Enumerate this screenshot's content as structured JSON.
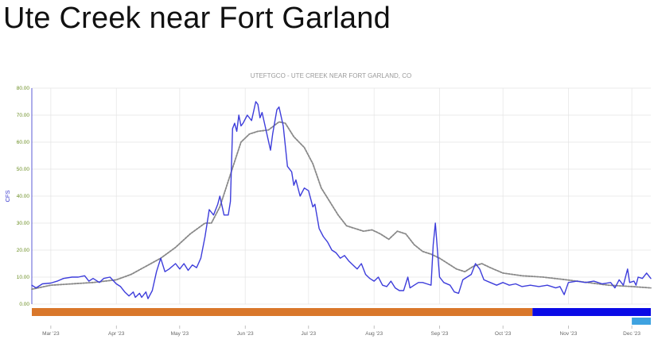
{
  "slide": {
    "title": "Ute Creek near Fort Garland"
  },
  "colors": {
    "observed": "#3d3ddb",
    "median": "#888888",
    "grid": "#e4e4e4",
    "axis": "#3333cc",
    "band_orange": "#d9772b",
    "band_blue": "#0a0ae6",
    "band_lightblue": "#3ea2e0"
  },
  "chart_data": {
    "type": "line",
    "title": "UTEFTGCO - UTE CREEK NEAR FORT GARLAND, CO",
    "ylabel": "CFS",
    "xlabel": "",
    "ylim": [
      0,
      80
    ],
    "yticks": [
      "0.00",
      "10.00",
      "20.00",
      "30.00",
      "40.00",
      "50.00",
      "60.00",
      "70.00",
      "80.00"
    ],
    "xlim": [
      "2023-02-20",
      "2023-12-10"
    ],
    "xticks": [
      {
        "date": "2023-03-01",
        "label": "Mar '23"
      },
      {
        "date": "2023-04-01",
        "label": "Apr '23"
      },
      {
        "date": "2023-05-01",
        "label": "May '23"
      },
      {
        "date": "2023-06-01",
        "label": "Jun '23"
      },
      {
        "date": "2023-07-01",
        "label": "Jul '23"
      },
      {
        "date": "2023-08-01",
        "label": "Aug '23"
      },
      {
        "date": "2023-09-01",
        "label": "Sep '23"
      },
      {
        "date": "2023-10-01",
        "label": "Oct '23"
      },
      {
        "date": "2023-11-01",
        "label": "Nov '23"
      },
      {
        "date": "2023-12-01",
        "label": "Dec '23"
      }
    ],
    "grid": true,
    "series": [
      {
        "key": "observed",
        "style": "solid",
        "points": [
          [
            "2023-02-20",
            7.0
          ],
          [
            "2023-02-22",
            6.0
          ],
          [
            "2023-02-25",
            7.5
          ],
          [
            "2023-03-01",
            7.8
          ],
          [
            "2023-03-04",
            8.5
          ],
          [
            "2023-03-07",
            9.5
          ],
          [
            "2023-03-11",
            10.0
          ],
          [
            "2023-03-14",
            10.0
          ],
          [
            "2023-03-17",
            10.5
          ],
          [
            "2023-03-19",
            8.5
          ],
          [
            "2023-03-21",
            9.5
          ],
          [
            "2023-03-24",
            8.0
          ],
          [
            "2023-03-26",
            9.5
          ],
          [
            "2023-03-29",
            10.0
          ],
          [
            "2023-04-01",
            7.5
          ],
          [
            "2023-04-03",
            6.5
          ],
          [
            "2023-04-05",
            4.5
          ],
          [
            "2023-04-07",
            3.0
          ],
          [
            "2023-04-09",
            4.5
          ],
          [
            "2023-04-10",
            2.5
          ],
          [
            "2023-04-12",
            4.0
          ],
          [
            "2023-04-13",
            2.5
          ],
          [
            "2023-04-15",
            4.5
          ],
          [
            "2023-04-16",
            2.0
          ],
          [
            "2023-04-18",
            5.0
          ],
          [
            "2023-04-20",
            12.0
          ],
          [
            "2023-04-22",
            17.0
          ],
          [
            "2023-04-24",
            12.0
          ],
          [
            "2023-04-26",
            13.0
          ],
          [
            "2023-04-29",
            15.0
          ],
          [
            "2023-05-01",
            13.0
          ],
          [
            "2023-05-03",
            15.0
          ],
          [
            "2023-05-05",
            12.5
          ],
          [
            "2023-05-07",
            14.5
          ],
          [
            "2023-05-09",
            13.5
          ],
          [
            "2023-05-11",
            17.0
          ],
          [
            "2023-05-13",
            25.0
          ],
          [
            "2023-05-15",
            35.0
          ],
          [
            "2023-05-17",
            33.0
          ],
          [
            "2023-05-19",
            37.0
          ],
          [
            "2023-05-20",
            40.0
          ],
          [
            "2023-05-22",
            33.0
          ],
          [
            "2023-05-24",
            33.0
          ],
          [
            "2023-05-25",
            38.0
          ],
          [
            "2023-05-26",
            65.0
          ],
          [
            "2023-05-27",
            67.0
          ],
          [
            "2023-05-28",
            64.0
          ],
          [
            "2023-05-29",
            70.0
          ],
          [
            "2023-05-30",
            66.0
          ],
          [
            "2023-05-31",
            67.0
          ],
          [
            "2023-06-02",
            70.0
          ],
          [
            "2023-06-04",
            68.0
          ],
          [
            "2023-06-06",
            75.0
          ],
          [
            "2023-06-07",
            74.0
          ],
          [
            "2023-06-08",
            69.0
          ],
          [
            "2023-06-09",
            71.0
          ],
          [
            "2023-06-11",
            64.0
          ],
          [
            "2023-06-13",
            57.0
          ],
          [
            "2023-06-14",
            63.0
          ],
          [
            "2023-06-16",
            72.0
          ],
          [
            "2023-06-17",
            73.0
          ],
          [
            "2023-06-19",
            66.0
          ],
          [
            "2023-06-21",
            51.0
          ],
          [
            "2023-06-23",
            49.0
          ],
          [
            "2023-06-24",
            44.0
          ],
          [
            "2023-06-25",
            46.0
          ],
          [
            "2023-06-27",
            40.0
          ],
          [
            "2023-06-29",
            43.0
          ],
          [
            "2023-07-01",
            42.0
          ],
          [
            "2023-07-03",
            36.0
          ],
          [
            "2023-07-04",
            37.0
          ],
          [
            "2023-07-06",
            28.0
          ],
          [
            "2023-07-08",
            25.0
          ],
          [
            "2023-07-10",
            23.0
          ],
          [
            "2023-07-12",
            20.0
          ],
          [
            "2023-07-14",
            19.0
          ],
          [
            "2023-07-16",
            17.0
          ],
          [
            "2023-07-18",
            18.0
          ],
          [
            "2023-07-20",
            16.0
          ],
          [
            "2023-07-22",
            14.5
          ],
          [
            "2023-07-24",
            13.0
          ],
          [
            "2023-07-26",
            15.0
          ],
          [
            "2023-07-28",
            11.0
          ],
          [
            "2023-07-30",
            9.5
          ],
          [
            "2023-08-01",
            8.5
          ],
          [
            "2023-08-03",
            10.0
          ],
          [
            "2023-08-05",
            7.0
          ],
          [
            "2023-08-07",
            6.5
          ],
          [
            "2023-08-09",
            8.5
          ],
          [
            "2023-08-11",
            6.0
          ],
          [
            "2023-08-13",
            5.0
          ],
          [
            "2023-08-15",
            5.0
          ],
          [
            "2023-08-17",
            10.0
          ],
          [
            "2023-08-18",
            6.0
          ],
          [
            "2023-08-20",
            7.0
          ],
          [
            "2023-08-22",
            8.0
          ],
          [
            "2023-08-24",
            8.0
          ],
          [
            "2023-08-26",
            7.5
          ],
          [
            "2023-08-28",
            7.0
          ],
          [
            "2023-08-29",
            22.0
          ],
          [
            "2023-08-30",
            30.0
          ],
          [
            "2023-08-31",
            20.0
          ],
          [
            "2023-09-01",
            10.0
          ],
          [
            "2023-09-03",
            8.0
          ],
          [
            "2023-09-06",
            7.0
          ],
          [
            "2023-09-08",
            4.5
          ],
          [
            "2023-09-10",
            4.0
          ],
          [
            "2023-09-12",
            9.0
          ],
          [
            "2023-09-14",
            10.0
          ],
          [
            "2023-09-16",
            11.0
          ],
          [
            "2023-09-18",
            15.0
          ],
          [
            "2023-09-20",
            13.0
          ],
          [
            "2023-09-22",
            9.0
          ],
          [
            "2023-09-25",
            8.0
          ],
          [
            "2023-09-28",
            7.0
          ],
          [
            "2023-10-01",
            8.0
          ],
          [
            "2023-10-04",
            7.0
          ],
          [
            "2023-10-07",
            7.5
          ],
          [
            "2023-10-10",
            6.5
          ],
          [
            "2023-10-14",
            7.0
          ],
          [
            "2023-10-18",
            6.5
          ],
          [
            "2023-10-22",
            7.0
          ],
          [
            "2023-10-26",
            6.0
          ],
          [
            "2023-10-28",
            6.5
          ],
          [
            "2023-10-30",
            3.5
          ],
          [
            "2023-11-01",
            8.0
          ],
          [
            "2023-11-05",
            8.5
          ],
          [
            "2023-11-09",
            8.0
          ],
          [
            "2023-11-13",
            8.5
          ],
          [
            "2023-11-17",
            7.5
          ],
          [
            "2023-11-21",
            8.0
          ],
          [
            "2023-11-23",
            6.0
          ],
          [
            "2023-11-25",
            9.0
          ],
          [
            "2023-11-27",
            7.0
          ],
          [
            "2023-11-29",
            13.0
          ],
          [
            "2023-11-30",
            8.0
          ],
          [
            "2023-12-02",
            8.5
          ],
          [
            "2023-12-03",
            7.0
          ],
          [
            "2023-12-04",
            10.0
          ],
          [
            "2023-12-06",
            9.5
          ],
          [
            "2023-12-08",
            11.5
          ],
          [
            "2023-12-10",
            9.5
          ]
        ]
      },
      {
        "key": "median",
        "style": "dashed",
        "points": [
          [
            "2023-02-20",
            5.5
          ],
          [
            "2023-03-01",
            7.0
          ],
          [
            "2023-03-11",
            7.5
          ],
          [
            "2023-03-21",
            8.0
          ],
          [
            "2023-04-01",
            9.0
          ],
          [
            "2023-04-08",
            11.0
          ],
          [
            "2023-04-15",
            14.0
          ],
          [
            "2023-04-22",
            17.0
          ],
          [
            "2023-04-29",
            21.0
          ],
          [
            "2023-05-06",
            26.0
          ],
          [
            "2023-05-13",
            30.0
          ],
          [
            "2023-05-16",
            30.0
          ],
          [
            "2023-05-20",
            36.0
          ],
          [
            "2023-05-25",
            48.0
          ],
          [
            "2023-05-30",
            60.0
          ],
          [
            "2023-06-03",
            63.0
          ],
          [
            "2023-06-07",
            64.0
          ],
          [
            "2023-06-12",
            64.5
          ],
          [
            "2023-06-17",
            67.5
          ],
          [
            "2023-06-20",
            67.0
          ],
          [
            "2023-06-24",
            62.0
          ],
          [
            "2023-06-29",
            58.0
          ],
          [
            "2023-07-03",
            52.0
          ],
          [
            "2023-07-07",
            43.0
          ],
          [
            "2023-07-11",
            38.0
          ],
          [
            "2023-07-15",
            33.0
          ],
          [
            "2023-07-19",
            29.0
          ],
          [
            "2023-07-23",
            28.0
          ],
          [
            "2023-07-27",
            27.0
          ],
          [
            "2023-07-31",
            27.5
          ],
          [
            "2023-08-04",
            26.0
          ],
          [
            "2023-08-08",
            24.0
          ],
          [
            "2023-08-12",
            27.0
          ],
          [
            "2023-08-16",
            26.0
          ],
          [
            "2023-08-20",
            22.0
          ],
          [
            "2023-08-24",
            19.5
          ],
          [
            "2023-08-28",
            18.5
          ],
          [
            "2023-09-01",
            17.0
          ],
          [
            "2023-09-05",
            15.0
          ],
          [
            "2023-09-09",
            13.0
          ],
          [
            "2023-09-13",
            12.0
          ],
          [
            "2023-09-17",
            14.0
          ],
          [
            "2023-09-21",
            15.0
          ],
          [
            "2023-09-25",
            13.5
          ],
          [
            "2023-10-01",
            11.5
          ],
          [
            "2023-10-10",
            10.5
          ],
          [
            "2023-10-20",
            10.0
          ],
          [
            "2023-10-31",
            9.0
          ],
          [
            "2023-11-10",
            8.0
          ],
          [
            "2023-11-20",
            7.0
          ],
          [
            "2023-12-01",
            6.5
          ],
          [
            "2023-12-10",
            6.0
          ]
        ]
      }
    ],
    "bands": [
      {
        "from": "2023-02-20",
        "to": "2023-10-15",
        "color": "#d9772b",
        "row": 1
      },
      {
        "from": "2023-10-15",
        "to": "2023-12-10",
        "color": "#0a0ae6",
        "row": 1
      },
      {
        "from": "2023-12-01",
        "to": "2023-12-10",
        "color": "#3ea2e0",
        "row": 2
      }
    ]
  }
}
